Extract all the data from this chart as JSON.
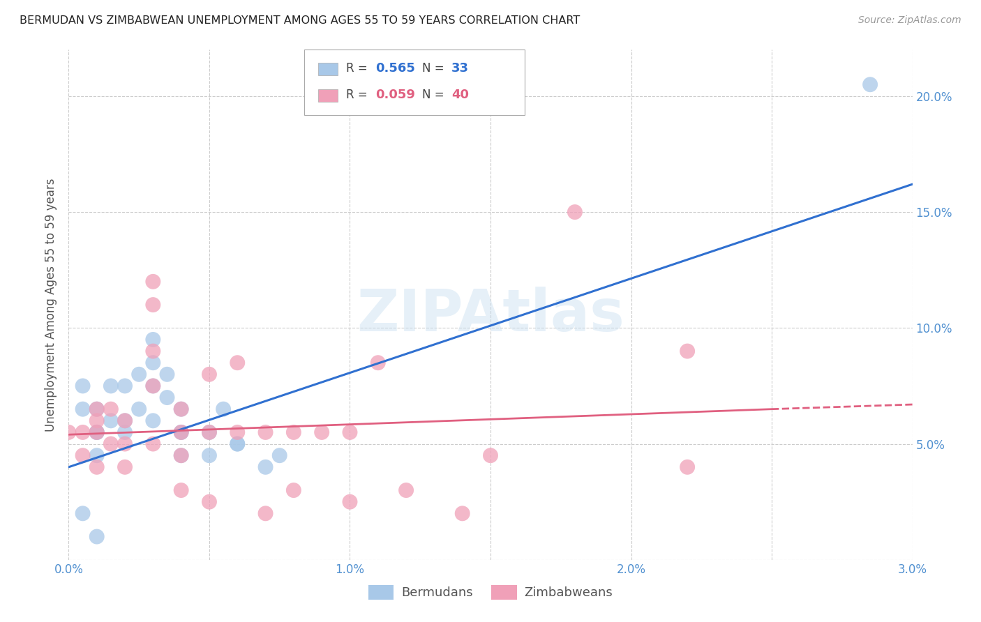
{
  "title": "BERMUDAN VS ZIMBABWEAN UNEMPLOYMENT AMONG AGES 55 TO 59 YEARS CORRELATION CHART",
  "source": "Source: ZipAtlas.com",
  "ylabel": "Unemployment Among Ages 55 to 59 years",
  "legend_blue_r": "0.565",
  "legend_blue_n": "33",
  "legend_pink_r": "0.059",
  "legend_pink_n": "40",
  "legend_blue_label": "Bermudans",
  "legend_pink_label": "Zimbabweans",
  "watermark": "ZIPAtlas",
  "xmin": 0.0,
  "xmax": 0.03,
  "ymin": 0.0,
  "ymax": 0.22,
  "yticks": [
    0.0,
    0.05,
    0.1,
    0.15,
    0.2
  ],
  "ytick_labels": [
    "",
    "5.0%",
    "10.0%",
    "15.0%",
    "20.0%"
  ],
  "xticks": [
    0.0,
    0.005,
    0.01,
    0.015,
    0.02,
    0.025,
    0.03
  ],
  "xtick_labels": [
    "0.0%",
    "",
    "1.0%",
    "",
    "2.0%",
    "",
    "3.0%"
  ],
  "blue_color": "#a8c8e8",
  "pink_color": "#f0a0b8",
  "blue_line_color": "#3070d0",
  "pink_line_color": "#e06080",
  "background_color": "#ffffff",
  "grid_color": "#cccccc",
  "title_color": "#222222",
  "axis_label_color": "#555555",
  "tick_label_color": "#5090d0",
  "blue_scatter_x": [
    0.0005,
    0.0005,
    0.001,
    0.001,
    0.001,
    0.001,
    0.0015,
    0.0015,
    0.002,
    0.002,
    0.002,
    0.0025,
    0.0025,
    0.003,
    0.003,
    0.003,
    0.003,
    0.0035,
    0.0035,
    0.004,
    0.004,
    0.004,
    0.004,
    0.005,
    0.005,
    0.0055,
    0.006,
    0.006,
    0.007,
    0.0075,
    0.0285,
    0.0005,
    0.001
  ],
  "blue_scatter_y": [
    0.065,
    0.075,
    0.065,
    0.055,
    0.055,
    0.045,
    0.06,
    0.075,
    0.075,
    0.06,
    0.055,
    0.065,
    0.08,
    0.085,
    0.095,
    0.075,
    0.06,
    0.07,
    0.08,
    0.055,
    0.045,
    0.055,
    0.065,
    0.055,
    0.045,
    0.065,
    0.05,
    0.05,
    0.04,
    0.045,
    0.205,
    0.02,
    0.01
  ],
  "pink_scatter_x": [
    0.0,
    0.0005,
    0.0005,
    0.001,
    0.001,
    0.001,
    0.001,
    0.0015,
    0.0015,
    0.002,
    0.002,
    0.002,
    0.003,
    0.003,
    0.003,
    0.003,
    0.003,
    0.004,
    0.004,
    0.004,
    0.004,
    0.005,
    0.005,
    0.005,
    0.006,
    0.006,
    0.007,
    0.007,
    0.008,
    0.008,
    0.009,
    0.01,
    0.01,
    0.011,
    0.012,
    0.014,
    0.015,
    0.018,
    0.022,
    0.022
  ],
  "pink_scatter_y": [
    0.055,
    0.055,
    0.045,
    0.06,
    0.065,
    0.055,
    0.04,
    0.065,
    0.05,
    0.06,
    0.04,
    0.05,
    0.11,
    0.12,
    0.09,
    0.075,
    0.05,
    0.065,
    0.045,
    0.03,
    0.055,
    0.08,
    0.055,
    0.025,
    0.085,
    0.055,
    0.055,
    0.02,
    0.03,
    0.055,
    0.055,
    0.055,
    0.025,
    0.085,
    0.03,
    0.02,
    0.045,
    0.15,
    0.09,
    0.04
  ],
  "blue_line_x": [
    0.0,
    0.03
  ],
  "blue_line_y": [
    0.04,
    0.162
  ],
  "pink_line_x": [
    0.0,
    0.025
  ],
  "pink_line_y": [
    0.054,
    0.065
  ]
}
